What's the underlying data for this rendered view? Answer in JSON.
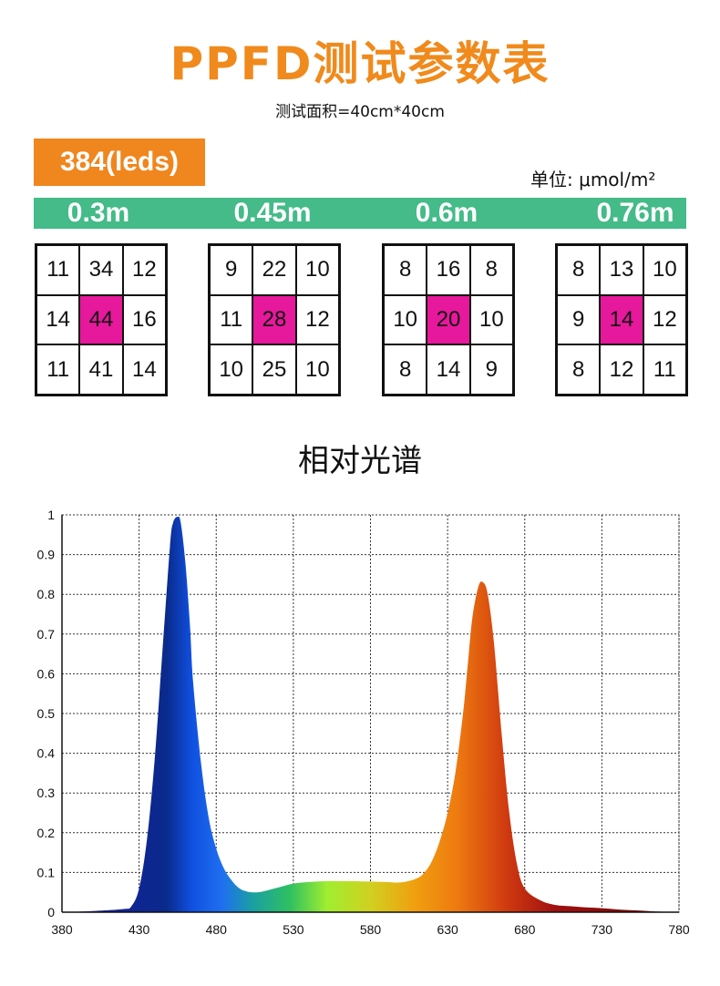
{
  "header": {
    "title": "PPFD测试参数表",
    "subtitle": "测试面积=40cm*40cm",
    "leds": "384(leds)",
    "unit": "单位: μmol/m²"
  },
  "colors": {
    "accent": "#f08a1c",
    "green_bar": "#44bb88",
    "highlight": "#e6189b"
  },
  "tables": [
    {
      "distance": "0.3m",
      "grid": [
        [
          "11",
          "34",
          "12"
        ],
        [
          "14",
          "44",
          "16"
        ],
        [
          "11",
          "41",
          "14"
        ]
      ]
    },
    {
      "distance": "0.45m",
      "grid": [
        [
          "9",
          "22",
          "10"
        ],
        [
          "11",
          "28",
          "12"
        ],
        [
          "10",
          "25",
          "10"
        ]
      ]
    },
    {
      "distance": "0.6m",
      "grid": [
        [
          "8",
          "16",
          "8"
        ],
        [
          "10",
          "20",
          "10"
        ],
        [
          "8",
          "14",
          "9"
        ]
      ]
    },
    {
      "distance": "0.76m",
      "grid": [
        [
          "8",
          "13",
          "10"
        ],
        [
          "9",
          "14",
          "12"
        ],
        [
          "8",
          "12",
          "11"
        ]
      ]
    }
  ],
  "chart_data": {
    "type": "area",
    "title": "相对光谱",
    "xlabel": "",
    "ylabel": "",
    "xlim": [
      380,
      780
    ],
    "ylim": [
      0,
      1
    ],
    "grid": true,
    "x_ticks": [
      "380",
      "430",
      "480",
      "530",
      "580",
      "630",
      "680",
      "730",
      "780"
    ],
    "y_ticks": [
      "0",
      "0.1",
      "0.2",
      "0.3",
      "0.4",
      "0.5",
      "0.6",
      "0.7",
      "0.8",
      "0.9",
      "1"
    ],
    "series": [
      {
        "x": [
          380,
          400,
          420,
          425,
          430,
          435,
          440,
          445,
          450,
          452,
          455,
          457,
          460,
          463,
          465,
          470,
          475,
          480,
          485,
          490,
          495,
          500,
          505,
          510,
          520,
          530,
          540,
          550,
          560,
          570,
          580,
          590,
          600,
          610,
          615,
          620,
          625,
          630,
          635,
          640,
          643,
          646,
          650,
          653,
          656,
          660,
          665,
          670,
          675,
          680,
          690,
          700,
          710,
          720,
          730,
          740,
          750,
          760,
          770,
          780
        ],
        "y": [
          0,
          0.003,
          0.008,
          0.015,
          0.06,
          0.18,
          0.38,
          0.65,
          0.92,
          0.98,
          0.995,
          0.98,
          0.88,
          0.72,
          0.58,
          0.38,
          0.24,
          0.16,
          0.11,
          0.08,
          0.06,
          0.052,
          0.05,
          0.052,
          0.062,
          0.072,
          0.076,
          0.078,
          0.078,
          0.078,
          0.077,
          0.076,
          0.075,
          0.085,
          0.1,
          0.13,
          0.18,
          0.25,
          0.35,
          0.5,
          0.62,
          0.74,
          0.82,
          0.83,
          0.8,
          0.68,
          0.45,
          0.25,
          0.12,
          0.06,
          0.03,
          0.018,
          0.015,
          0.012,
          0.01,
          0.007,
          0.005,
          0.003,
          0.001,
          0
        ]
      }
    ]
  }
}
